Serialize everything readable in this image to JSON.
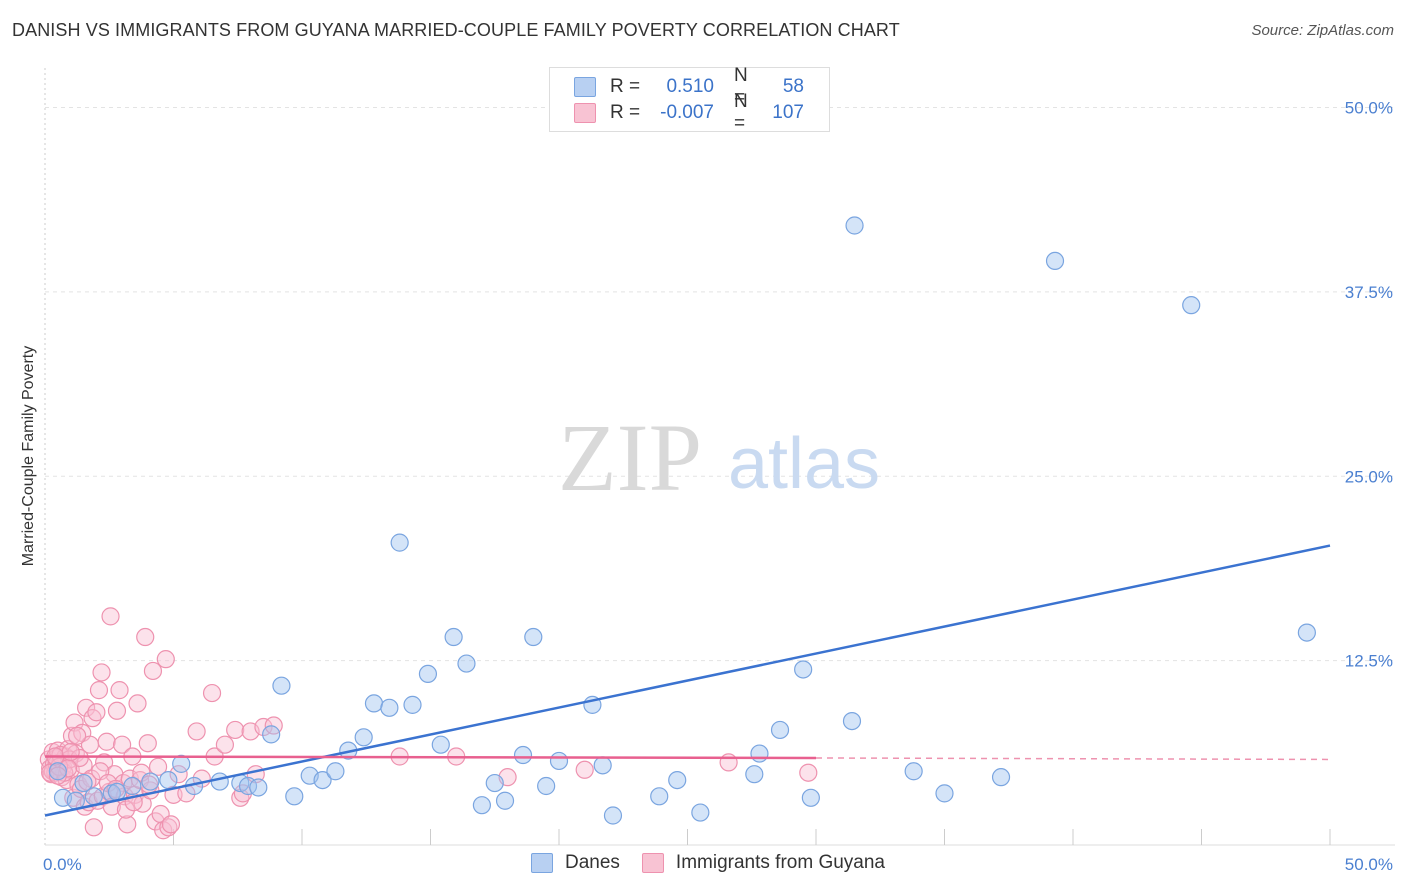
{
  "title": "DANISH VS IMMIGRANTS FROM GUYANA MARRIED-COUPLE FAMILY POVERTY CORRELATION CHART",
  "source": "Source: ZipAtlas.com",
  "watermark": {
    "zip": "ZIP",
    "atlas": "atlas"
  },
  "legend": {
    "r_label": "R =",
    "n_label": "N =",
    "rows": [
      {
        "name": "Danes",
        "r": "0.510",
        "n": "58",
        "fill": "#b8d0f2",
        "stroke": "#7aa5e0"
      },
      {
        "name": "Immigrants from Guyana",
        "r": "-0.007",
        "n": "107",
        "fill": "#f8c3d3",
        "stroke": "#ee92af"
      }
    ]
  },
  "chart_data": {
    "type": "scatter",
    "title": "DANISH VS IMMIGRANTS FROM GUYANA MARRIED-COUPLE FAMILY POVERTY CORRELATION CHART",
    "xlabel": "",
    "ylabel": "Married-Couple Family Poverty",
    "xlim": [
      0,
      50
    ],
    "ylim": [
      0,
      52
    ],
    "x_tick_labels": [
      {
        "value": 0,
        "label": "0.0%"
      },
      {
        "value": 50,
        "label": "50.0%"
      }
    ],
    "y_tick_labels": [
      {
        "value": 12.5,
        "label": "12.5%"
      },
      {
        "value": 25.0,
        "label": "25.0%"
      },
      {
        "value": 37.5,
        "label": "37.5%"
      },
      {
        "value": 50.0,
        "label": "50.0%"
      }
    ],
    "grid": true,
    "series": [
      {
        "name": "Danes",
        "color": "#3b73d0",
        "fill": "rgba(160,195,240,0.45)",
        "stroke": "#7aa5e0",
        "points": [
          [
            0.7,
            3.2
          ],
          [
            1.2,
            3.0
          ],
          [
            1.9,
            3.3
          ],
          [
            2.6,
            3.5
          ],
          [
            3.4,
            4.0
          ],
          [
            4.1,
            4.3
          ],
          [
            4.8,
            4.4
          ],
          [
            5.3,
            5.5
          ],
          [
            5.8,
            4.0
          ],
          [
            6.8,
            4.3
          ],
          [
            7.6,
            4.2
          ],
          [
            7.9,
            4.0
          ],
          [
            8.3,
            3.9
          ],
          [
            8.8,
            7.5
          ],
          [
            9.2,
            10.8
          ],
          [
            9.7,
            3.3
          ],
          [
            10.3,
            4.7
          ],
          [
            10.8,
            4.4
          ],
          [
            11.3,
            5.0
          ],
          [
            11.8,
            6.4
          ],
          [
            12.4,
            7.3
          ],
          [
            12.8,
            9.6
          ],
          [
            13.4,
            9.3
          ],
          [
            13.8,
            20.5
          ],
          [
            14.3,
            9.5
          ],
          [
            14.9,
            11.6
          ],
          [
            15.4,
            6.8
          ],
          [
            15.9,
            14.1
          ],
          [
            16.4,
            12.3
          ],
          [
            17.0,
            2.7
          ],
          [
            17.5,
            4.2
          ],
          [
            17.9,
            3.0
          ],
          [
            18.6,
            6.1
          ],
          [
            19.0,
            14.1
          ],
          [
            19.5,
            4.0
          ],
          [
            20.0,
            5.7
          ],
          [
            21.3,
            9.5
          ],
          [
            21.7,
            5.4
          ],
          [
            22.1,
            2.0
          ],
          [
            23.9,
            3.3
          ],
          [
            24.6,
            4.4
          ],
          [
            25.5,
            2.2
          ],
          [
            27.6,
            4.8
          ],
          [
            27.8,
            6.2
          ],
          [
            28.6,
            7.8
          ],
          [
            29.5,
            11.9
          ],
          [
            29.8,
            3.2
          ],
          [
            31.4,
            8.4
          ],
          [
            31.5,
            42.0
          ],
          [
            33.8,
            5.0
          ],
          [
            35.0,
            3.5
          ],
          [
            37.2,
            4.6
          ],
          [
            39.3,
            39.6
          ],
          [
            44.6,
            36.6
          ],
          [
            49.1,
            14.4
          ],
          [
            0.5,
            5.0
          ],
          [
            1.5,
            4.2
          ],
          [
            2.8,
            3.6
          ]
        ],
        "trend": {
          "x1": 0,
          "y1": 2.0,
          "x2": 50,
          "y2": 20.3
        }
      },
      {
        "name": "Immigrants from Guyana",
        "color": "#e8608f",
        "fill": "rgba(248,190,210,0.45)",
        "stroke": "#ee92af",
        "points": [
          [
            0.15,
            5.8
          ],
          [
            0.2,
            5.2
          ],
          [
            0.25,
            4.8
          ],
          [
            0.3,
            6.3
          ],
          [
            0.35,
            5.5
          ],
          [
            0.4,
            4.9
          ],
          [
            0.45,
            5.9
          ],
          [
            0.5,
            6.4
          ],
          [
            0.55,
            5.0
          ],
          [
            0.6,
            5.6
          ],
          [
            0.65,
            4.6
          ],
          [
            0.7,
            5.3
          ],
          [
            0.8,
            6.0
          ],
          [
            0.85,
            4.4
          ],
          [
            0.9,
            6.5
          ],
          [
            1.0,
            5.1
          ],
          [
            1.05,
            7.4
          ],
          [
            1.1,
            3.2
          ],
          [
            1.15,
            8.3
          ],
          [
            1.2,
            6.2
          ],
          [
            1.3,
            4.1
          ],
          [
            1.4,
            3.8
          ],
          [
            1.45,
            7.6
          ],
          [
            1.5,
            5.4
          ],
          [
            1.55,
            2.6
          ],
          [
            1.6,
            9.3
          ],
          [
            1.7,
            2.9
          ],
          [
            1.75,
            6.8
          ],
          [
            1.8,
            4.5
          ],
          [
            1.85,
            8.6
          ],
          [
            1.9,
            1.2
          ],
          [
            2.0,
            9.0
          ],
          [
            2.05,
            3.0
          ],
          [
            2.1,
            10.5
          ],
          [
            2.2,
            11.7
          ],
          [
            2.25,
            3.3
          ],
          [
            2.3,
            5.6
          ],
          [
            2.4,
            7.0
          ],
          [
            2.5,
            3.6
          ],
          [
            2.55,
            15.5
          ],
          [
            2.6,
            2.6
          ],
          [
            2.7,
            4.8
          ],
          [
            2.8,
            9.1
          ],
          [
            2.9,
            10.5
          ],
          [
            3.0,
            6.8
          ],
          [
            3.05,
            4.2
          ],
          [
            3.1,
            3.3
          ],
          [
            3.2,
            1.4
          ],
          [
            3.3,
            4.5
          ],
          [
            3.4,
            6.0
          ],
          [
            3.5,
            3.4
          ],
          [
            3.6,
            9.6
          ],
          [
            3.7,
            4.4
          ],
          [
            3.8,
            2.8
          ],
          [
            3.9,
            14.1
          ],
          [
            4.0,
            6.9
          ],
          [
            4.1,
            3.7
          ],
          [
            4.2,
            11.8
          ],
          [
            4.3,
            1.6
          ],
          [
            4.4,
            5.3
          ],
          [
            4.5,
            2.1
          ],
          [
            4.6,
            1.0
          ],
          [
            4.7,
            12.6
          ],
          [
            4.8,
            1.2
          ],
          [
            4.9,
            1.4
          ],
          [
            5.0,
            3.4
          ],
          [
            5.2,
            4.8
          ],
          [
            5.5,
            3.5
          ],
          [
            5.9,
            7.7
          ],
          [
            6.1,
            4.5
          ],
          [
            6.5,
            10.3
          ],
          [
            6.6,
            6.0
          ],
          [
            7.0,
            6.8
          ],
          [
            7.4,
            7.8
          ],
          [
            7.6,
            3.2
          ],
          [
            7.7,
            3.5
          ],
          [
            8.0,
            7.7
          ],
          [
            8.2,
            4.8
          ],
          [
            8.5,
            8.0
          ],
          [
            8.9,
            8.1
          ],
          [
            0.3,
            5.0
          ],
          [
            0.45,
            5.5
          ],
          [
            0.6,
            6.1
          ],
          [
            0.75,
            4.9
          ],
          [
            0.95,
            5.8
          ],
          [
            1.25,
            7.4
          ],
          [
            1.35,
            5.9
          ],
          [
            1.65,
            4.3
          ],
          [
            2.15,
            5.0
          ],
          [
            2.45,
            4.2
          ],
          [
            2.75,
            3.8
          ],
          [
            3.15,
            2.4
          ],
          [
            3.45,
            2.9
          ],
          [
            3.75,
            4.9
          ],
          [
            4.05,
            4.1
          ],
          [
            0.2,
            4.9
          ],
          [
            0.55,
            5.3
          ],
          [
            0.4,
            6.0
          ],
          [
            0.9,
            5.2
          ],
          [
            13.8,
            6.0
          ],
          [
            16.0,
            6.0
          ],
          [
            18.0,
            4.6
          ],
          [
            21.0,
            5.1
          ],
          [
            26.6,
            5.6
          ],
          [
            29.7,
            4.9
          ],
          [
            0.5,
            4.7
          ],
          [
            1.0,
            6.3
          ]
        ],
        "trend": {
          "x1": 0,
          "y1": 6.0,
          "x2": 30,
          "y2": 5.9
        },
        "trend_dashed": {
          "x1": 30,
          "y1": 5.9,
          "x2": 50,
          "y2": 5.8
        }
      }
    ]
  }
}
